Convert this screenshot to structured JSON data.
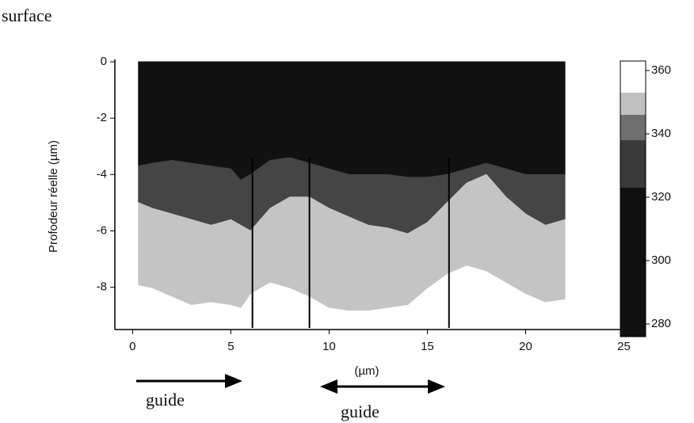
{
  "chart_data": {
    "type": "heatmap",
    "title": "surface",
    "ylabel": "Profodeur réelle (µm)",
    "xlabel": "(µm)",
    "annotations": [
      "guide",
      "guide"
    ],
    "xlim": [
      -0.9,
      25.1
    ],
    "xticks": [
      0,
      5,
      10,
      15,
      20,
      25
    ],
    "ylim": [
      -9.5,
      0
    ],
    "yticks": [
      0,
      -2,
      -4,
      -6,
      -8
    ],
    "x": [
      0.3,
      1,
      2,
      3,
      4,
      5,
      5.5,
      6,
      7,
      8,
      9,
      10,
      11,
      12,
      13,
      14,
      15,
      16,
      17,
      18,
      19,
      20,
      21,
      22
    ],
    "layers": [
      {
        "level": 290,
        "color": "#111111",
        "depth": [
          -3.7,
          -3.6,
          -3.5,
          -3.6,
          -3.7,
          -3.8,
          -4.2,
          -4.0,
          -3.5,
          -3.4,
          -3.6,
          -3.8,
          -4.0,
          -4.0,
          -4.0,
          -4.1,
          -4.1,
          -4.0,
          -3.8,
          -3.6,
          -3.8,
          -4.0,
          -4.0,
          -4.0
        ]
      },
      {
        "level": 335,
        "color": "#454545",
        "depth": [
          -5.0,
          -5.2,
          -5.4,
          -5.6,
          -5.8,
          -5.6,
          -5.8,
          -6.0,
          -5.2,
          -4.8,
          -4.8,
          -5.2,
          -5.5,
          -5.8,
          -5.9,
          -6.1,
          -5.7,
          -5.0,
          -4.3,
          -4.0,
          -4.8,
          -5.4,
          -5.8,
          -5.6
        ]
      },
      {
        "level": 350,
        "color": "#c4c4c4",
        "depth": [
          -7.9,
          -8.0,
          -8.3,
          -8.6,
          -8.5,
          -8.6,
          -8.7,
          -8.2,
          -7.8,
          -8.0,
          -8.3,
          -8.7,
          -8.8,
          -8.8,
          -8.7,
          -8.6,
          -8.0,
          -7.5,
          -7.2,
          -7.4,
          -7.8,
          -8.2,
          -8.5,
          -8.4
        ]
      }
    ],
    "markers_x": [
      6.1,
      9.0,
      16.1
    ],
    "clim": [
      276,
      363
    ],
    "cticks": [
      280,
      300,
      320,
      340,
      360
    ],
    "colorbar": [
      {
        "from": 276,
        "to": 323,
        "color": "#111111"
      },
      {
        "from": 323,
        "to": 338,
        "color": "#3a3a3a"
      },
      {
        "from": 338,
        "to": 346,
        "color": "#6e6e6e"
      },
      {
        "from": 346,
        "to": 353,
        "color": "#c0c0c0"
      },
      {
        "from": 353,
        "to": 363,
        "color": "#ffffff"
      }
    ]
  }
}
